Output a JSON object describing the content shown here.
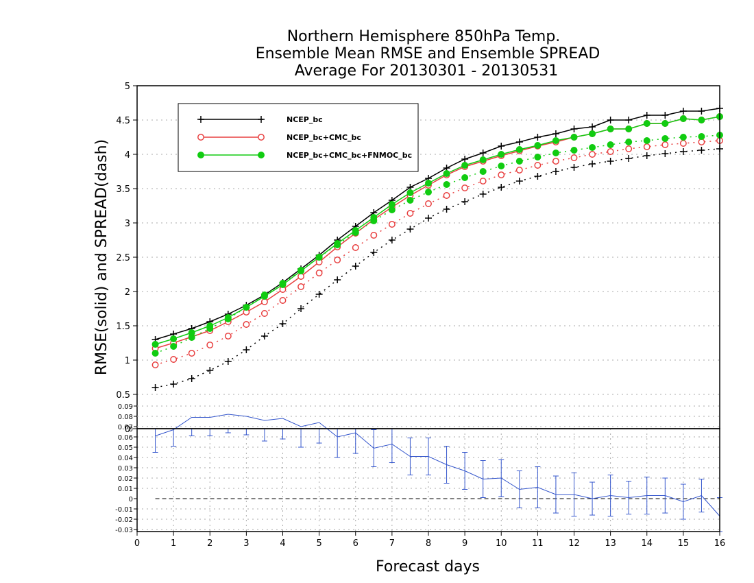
{
  "chart_data": {
    "type": "line",
    "title": [
      "Northern Hemisphere 850hPa Temp.",
      "Ensemble Mean RMSE and Ensemble SPREAD",
      "Average For 20130301 - 20130531"
    ],
    "xlabel": "Forecast days",
    "ylabel": "RMSE(solid) and SPREAD(dash)",
    "xlim": [
      0,
      16
    ],
    "ylim": [
      0,
      5
    ],
    "x_ticks": [
      "0",
      "1",
      "2",
      "3",
      "4",
      "5",
      "6",
      "7",
      "8",
      "9",
      "10",
      "11",
      "12",
      "13",
      "14",
      "15",
      "16"
    ],
    "y_ticks": [
      "0",
      "0.5",
      "1",
      "1.5",
      "2",
      "2.5",
      "3",
      "3.5",
      "4",
      "4.5",
      "5"
    ],
    "grid": true,
    "legend_placement": "top-left",
    "x": [
      0.5,
      1,
      1.5,
      2,
      2.5,
      3,
      3.5,
      4,
      4.5,
      5,
      5.5,
      6,
      6.5,
      7,
      7.5,
      8,
      8.5,
      9,
      9.5,
      10,
      10.5,
      11,
      11.5,
      12,
      12.5,
      13,
      13.5,
      14,
      14.5,
      15,
      15.5,
      16
    ],
    "series": [
      {
        "name": "NCEP_bc",
        "color": "#000000",
        "marker": "plus",
        "rmse": [
          1.3,
          1.38,
          1.46,
          1.56,
          1.67,
          1.8,
          1.95,
          2.13,
          2.33,
          2.53,
          2.75,
          2.95,
          3.15,
          3.33,
          3.52,
          3.65,
          3.8,
          3.93,
          4.02,
          4.12,
          4.18,
          4.25,
          4.3,
          4.37,
          4.4,
          4.5,
          4.5,
          4.57,
          4.57,
          4.63,
          4.63,
          4.67
        ],
        "spread": [
          0.6,
          0.65,
          0.73,
          0.85,
          0.98,
          1.15,
          1.35,
          1.53,
          1.75,
          1.96,
          2.17,
          2.37,
          2.57,
          2.75,
          2.91,
          3.07,
          3.2,
          3.31,
          3.42,
          3.52,
          3.61,
          3.68,
          3.75,
          3.81,
          3.86,
          3.9,
          3.94,
          3.98,
          4.01,
          4.04,
          4.06,
          4.08
        ]
      },
      {
        "name": "NCEP_bc+CMC_bc",
        "color": "#e84040",
        "marker": "open-circle",
        "rmse": [
          1.17,
          1.25,
          1.34,
          1.43,
          1.56,
          1.7,
          1.85,
          2.03,
          2.22,
          2.43,
          2.65,
          2.85,
          3.05,
          3.23,
          3.4,
          3.55,
          3.7,
          3.82,
          3.9,
          3.98,
          4.05,
          4.12,
          4.18,
          4.25,
          4.3,
          4.37,
          4.37,
          4.45,
          4.45,
          4.52,
          4.5,
          4.55
        ],
        "spread": [
          0.93,
          1.01,
          1.1,
          1.22,
          1.35,
          1.52,
          1.68,
          1.87,
          2.07,
          2.27,
          2.46,
          2.64,
          2.82,
          2.98,
          3.14,
          3.28,
          3.4,
          3.51,
          3.61,
          3.7,
          3.77,
          3.84,
          3.9,
          3.95,
          4.0,
          4.04,
          4.08,
          4.11,
          4.14,
          4.16,
          4.18,
          4.2
        ]
      },
      {
        "name": "NCEP_bc+CMC_bc+FNMOC_bc",
        "color": "#11cc11",
        "marker": "filled-circle",
        "rmse": [
          1.23,
          1.31,
          1.4,
          1.5,
          1.62,
          1.77,
          1.93,
          2.1,
          2.3,
          2.5,
          2.7,
          2.89,
          3.08,
          3.27,
          3.44,
          3.58,
          3.72,
          3.84,
          3.92,
          4.0,
          4.07,
          4.13,
          4.2,
          4.25,
          4.3,
          4.37,
          4.37,
          4.45,
          4.45,
          4.52,
          4.5,
          4.55
        ],
        "spread": [
          1.1,
          1.2,
          1.33,
          1.46,
          1.6,
          1.77,
          1.95,
          2.12,
          2.31,
          2.5,
          2.68,
          2.86,
          3.03,
          3.19,
          3.33,
          3.45,
          3.56,
          3.66,
          3.75,
          3.83,
          3.9,
          3.96,
          4.02,
          4.06,
          4.1,
          4.14,
          4.18,
          4.2,
          4.23,
          4.25,
          4.26,
          4.28
        ]
      }
    ],
    "difference_panel": {
      "ylim": [
        -0.03,
        0.1
      ],
      "y_ticks": [
        "0.09",
        "0.08",
        "0.07",
        "0.06",
        "0.05",
        "0.04",
        "0.03",
        "0.02",
        "0.01",
        "0",
        "-0.01",
        "-0.02",
        "-0.03"
      ],
      "x_ticks": [
        "0",
        "1",
        "2",
        "3",
        "4",
        "5",
        "6",
        "7",
        "8",
        "9",
        "10",
        "11",
        "12",
        "13",
        "14",
        "15",
        "16"
      ],
      "top_label": "0",
      "color": "#3355cc",
      "zero_line": true,
      "x": [
        0.5,
        1,
        1.5,
        2,
        2.5,
        3,
        3.5,
        4,
        4.5,
        5,
        5.5,
        6,
        6.5,
        7,
        7.5,
        8,
        8.5,
        9,
        9.5,
        10,
        10.5,
        11,
        11.5,
        12,
        12.5,
        13,
        13.5,
        14,
        14.5,
        15,
        15.5,
        16
      ],
      "values": [
        0.061,
        0.067,
        0.079,
        0.079,
        0.082,
        0.08,
        0.076,
        0.078,
        0.07,
        0.074,
        0.06,
        0.064,
        0.049,
        0.053,
        0.041,
        0.041,
        0.033,
        0.027,
        0.019,
        0.02,
        0.009,
        0.011,
        0.004,
        0.004,
        0.0,
        0.003,
        0.001,
        0.003,
        0.003,
        -0.003,
        0.003,
        -0.017
      ],
      "errors": [
        0.016,
        0.016,
        0.018,
        0.018,
        0.018,
        0.018,
        0.02,
        0.02,
        0.02,
        0.02,
        0.02,
        0.02,
        0.018,
        0.018,
        0.018,
        0.018,
        0.018,
        0.018,
        0.018,
        0.018,
        0.018,
        0.02,
        0.018,
        0.021,
        0.016,
        0.02,
        0.016,
        0.018,
        0.017,
        0.017,
        0.016,
        0.018
      ]
    }
  }
}
